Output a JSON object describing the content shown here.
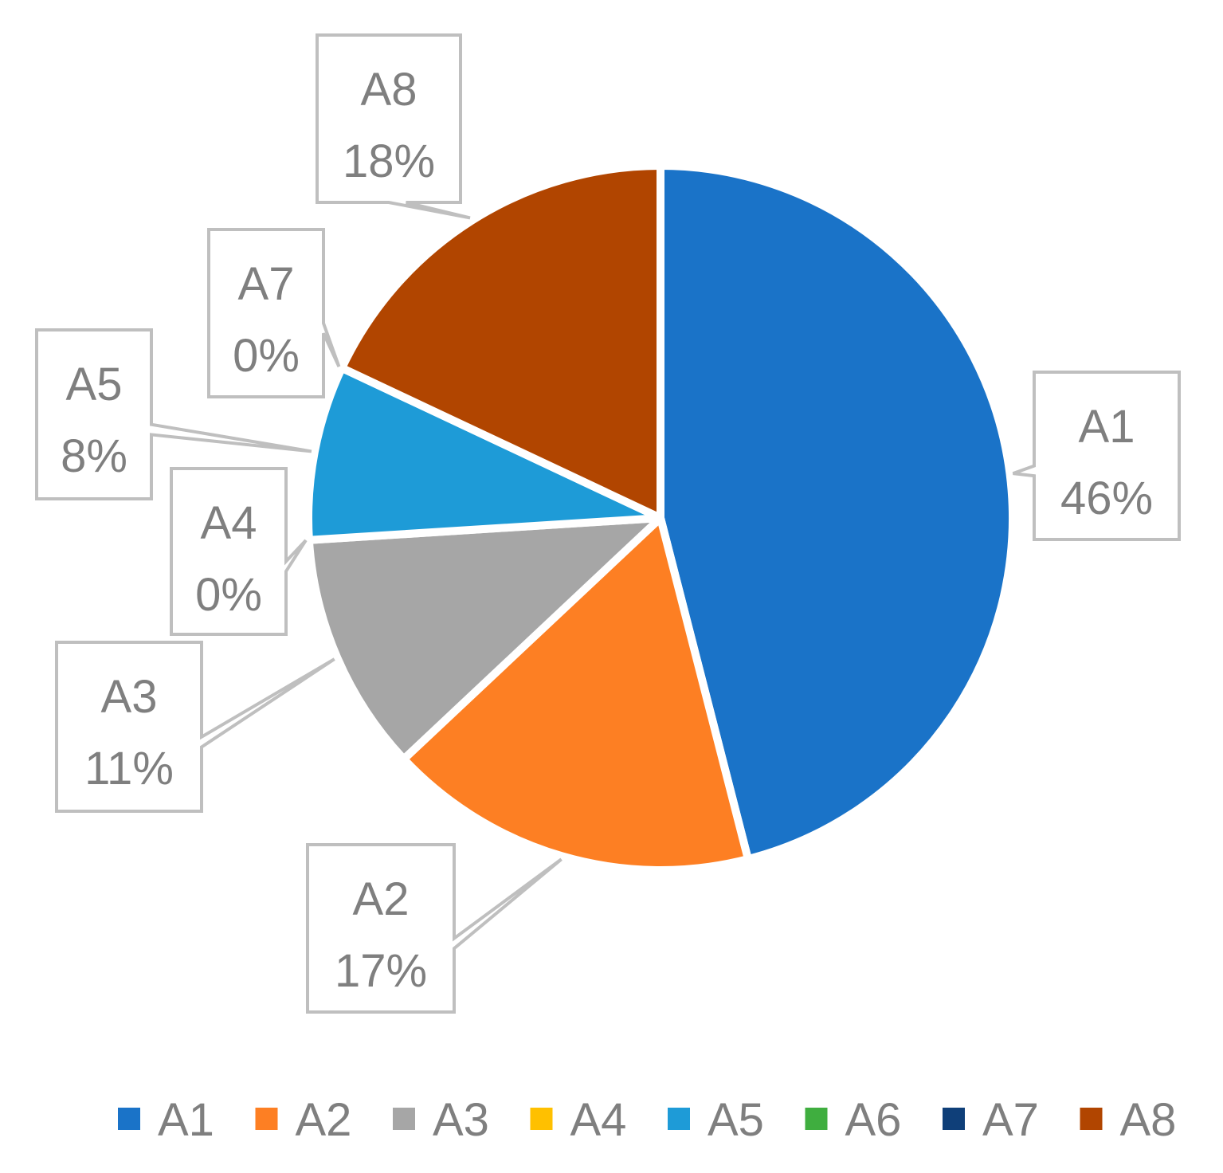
{
  "chart_data": {
    "type": "pie",
    "title": "",
    "categories": [
      "A1",
      "A2",
      "A3",
      "A4",
      "A5",
      "A6",
      "A7",
      "A8"
    ],
    "values": [
      46,
      17,
      11,
      0,
      8,
      0,
      0,
      18
    ],
    "data_labels": [
      "46%",
      "17%",
      "11%",
      "0%",
      "8%",
      "",
      "0%",
      "18%"
    ],
    "colors": [
      "#1a73c8",
      "#fd7f23",
      "#a6a6a6",
      "#ffc000",
      "#1e9bd7",
      "#3fae3f",
      "#0f3f79",
      "#b14500"
    ],
    "legend_position": "bottom",
    "start_angle_deg": 0,
    "direction": "clockwise"
  }
}
